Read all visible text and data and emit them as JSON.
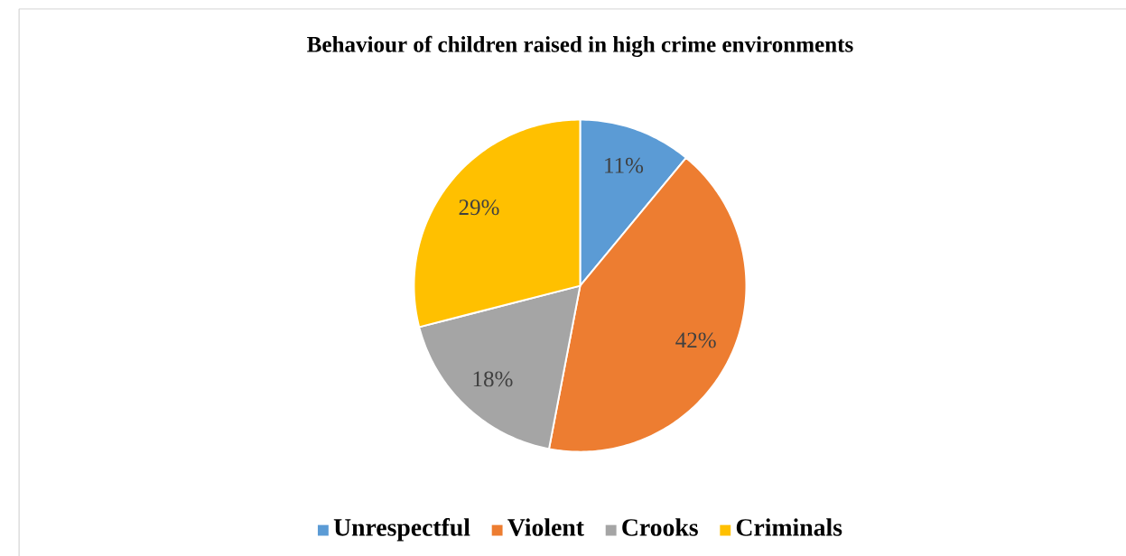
{
  "chart_data": {
    "type": "pie",
    "title": "Behaviour of children raised in high crime environments",
    "categories": [
      "Unrespectful",
      "Violent",
      "Crooks",
      "Criminals"
    ],
    "values": [
      11,
      42,
      18,
      29
    ],
    "colors": [
      "#5b9bd5",
      "#ed7d31",
      "#a5a5a5",
      "#ffc000"
    ],
    "value_labels": [
      "11%",
      "42%",
      "18%",
      "29%"
    ],
    "legend": "bottom"
  }
}
